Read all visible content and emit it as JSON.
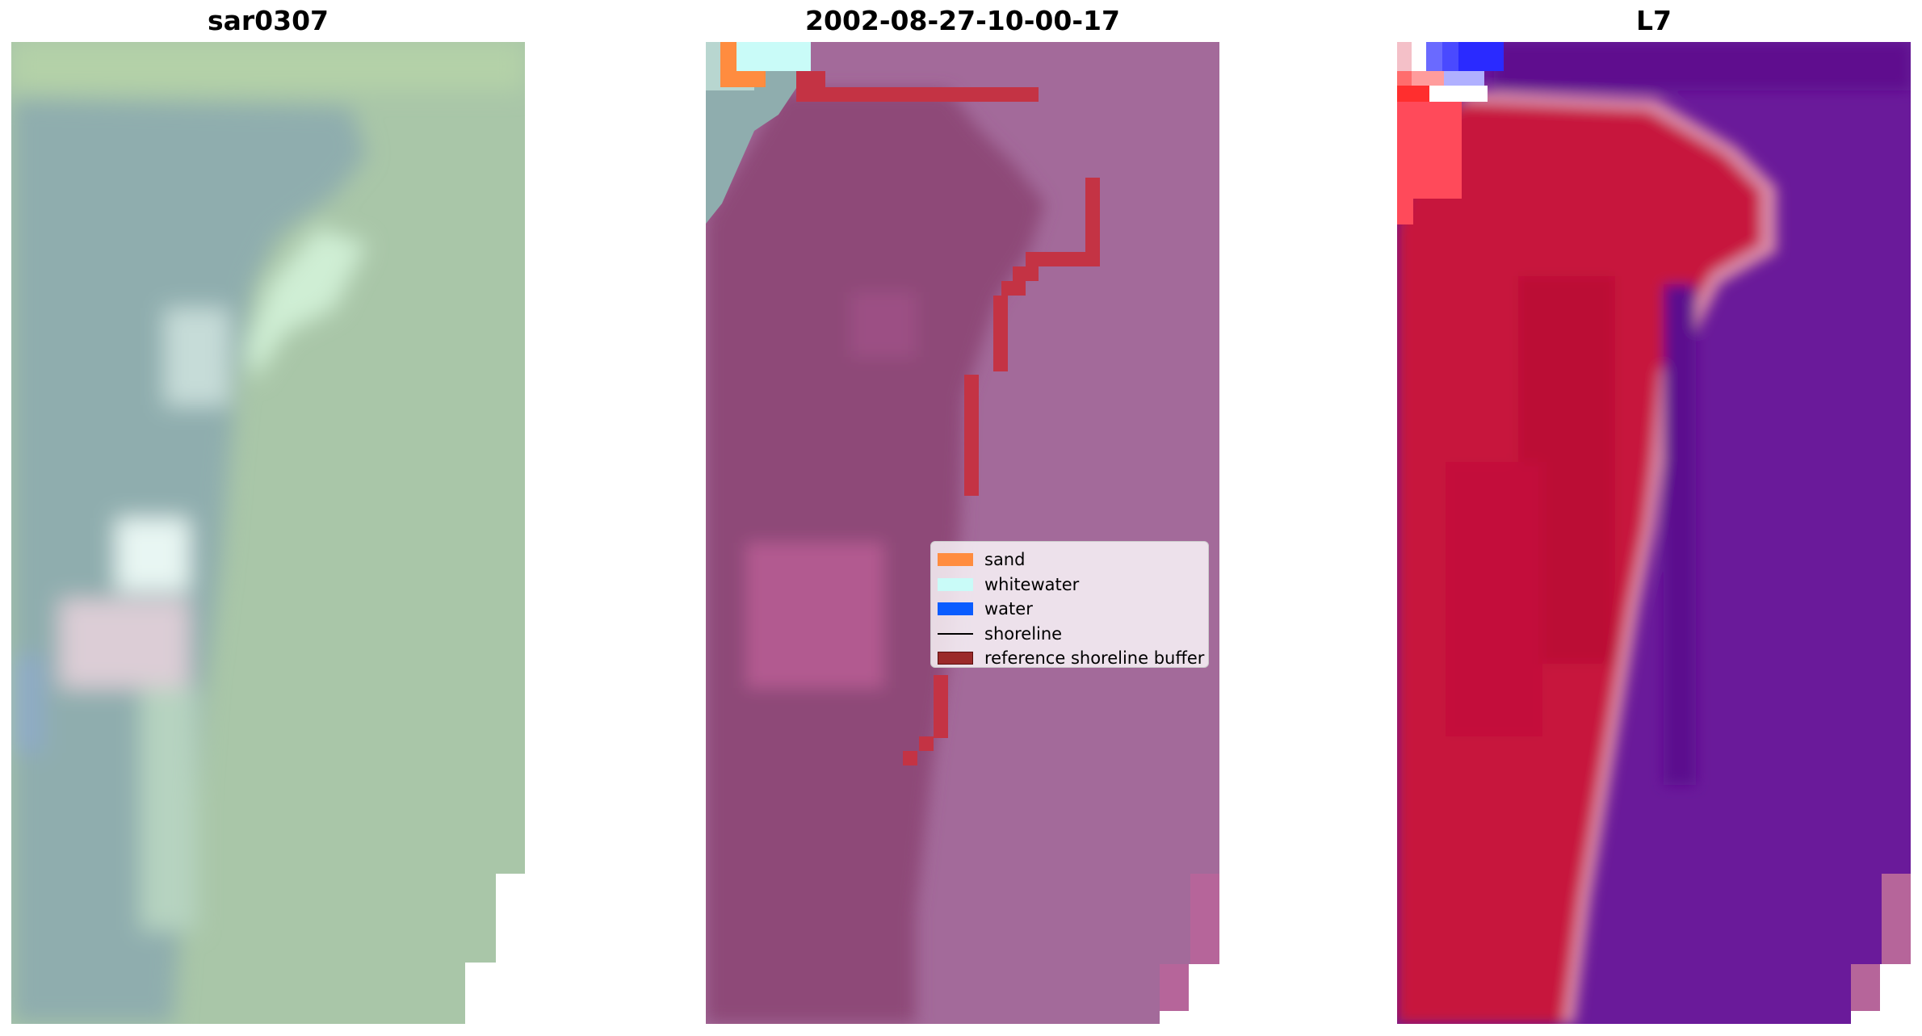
{
  "panels": [
    {
      "title": "sar0307"
    },
    {
      "title": "2002-08-27-10-00-17"
    },
    {
      "title": "L7"
    }
  ],
  "legend": {
    "items": [
      {
        "label": "sand",
        "kind": "patch",
        "color": "#ff8c3f"
      },
      {
        "label": "whitewater",
        "kind": "patch",
        "color": "#c9fbf8"
      },
      {
        "label": "water",
        "kind": "patch",
        "color": "#0a5cff"
      },
      {
        "label": "shoreline",
        "kind": "line",
        "color": "#000000"
      },
      {
        "label": "reference shoreline buffer",
        "kind": "patch",
        "color": "#8b1a1a"
      }
    ]
  },
  "colors": {
    "rgb_green": "#a9c6a8",
    "rgb_bluegrey": "#8fadae",
    "classified_purple": "#a36a9a",
    "classified_dark": "#8e4a78",
    "buffer_red": "#c43344",
    "mndwi_red": "#c7123e",
    "mndwi_purple": "#6a1a9a",
    "mndwi_blue": "#2a2aff"
  }
}
